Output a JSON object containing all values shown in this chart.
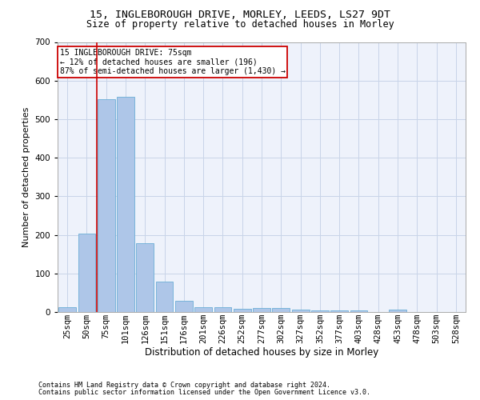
{
  "title1": "15, INGLEBOROUGH DRIVE, MORLEY, LEEDS, LS27 9DT",
  "title2": "Size of property relative to detached houses in Morley",
  "xlabel": "Distribution of detached houses by size in Morley",
  "ylabel": "Number of detached properties",
  "bar_labels": [
    "25sqm",
    "50sqm",
    "75sqm",
    "101sqm",
    "126sqm",
    "151sqm",
    "176sqm",
    "201sqm",
    "226sqm",
    "252sqm",
    "277sqm",
    "302sqm",
    "327sqm",
    "352sqm",
    "377sqm",
    "403sqm",
    "428sqm",
    "453sqm",
    "478sqm",
    "503sqm",
    "528sqm"
  ],
  "bar_values": [
    13,
    204,
    551,
    557,
    179,
    78,
    30,
    13,
    12,
    9,
    10,
    10,
    7,
    5,
    5,
    5,
    0,
    6,
    0,
    0,
    0
  ],
  "bar_color": "#aec6e8",
  "bar_edge_color": "#6baed6",
  "grid_color": "#c8d4e8",
  "bg_color": "#eef2fb",
  "vline_color": "#cc0000",
  "vline_at_index": 2,
  "annotation_lines": [
    "15 INGLEBOROUGH DRIVE: 75sqm",
    "← 12% of detached houses are smaller (196)",
    "87% of semi-detached houses are larger (1,430) →"
  ],
  "annotation_box_color": "#cc0000",
  "footnote1": "Contains HM Land Registry data © Crown copyright and database right 2024.",
  "footnote2": "Contains public sector information licensed under the Open Government Licence v3.0.",
  "ylim": [
    0,
    700
  ],
  "yticks": [
    0,
    100,
    200,
    300,
    400,
    500,
    600,
    700
  ],
  "title1_fontsize": 9.5,
  "title2_fontsize": 8.5,
  "xlabel_fontsize": 8.5,
  "ylabel_fontsize": 8,
  "tick_fontsize": 7.5,
  "ann_fontsize": 7,
  "footnote_fontsize": 6
}
